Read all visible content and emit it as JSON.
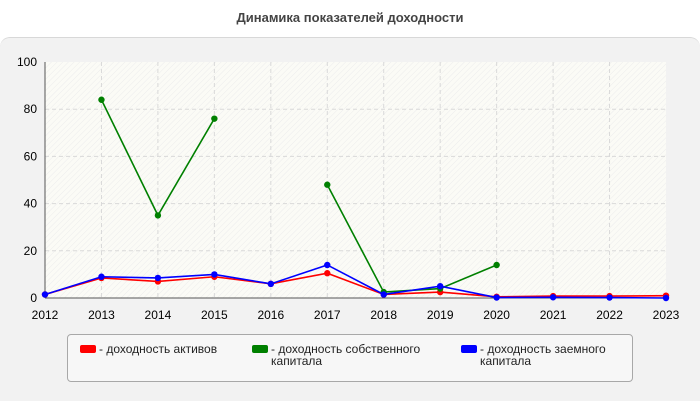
{
  "header": {
    "title": "Динамика показателей доходности"
  },
  "chart_data": {
    "type": "line",
    "title": "Динамика показателей доходности",
    "x": [
      2012,
      2013,
      2014,
      2015,
      2016,
      2017,
      2018,
      2019,
      2020,
      2021,
      2022,
      2023
    ],
    "xlim": [
      2012,
      2023
    ],
    "ylim": [
      0,
      100
    ],
    "yticks": [
      0,
      20,
      40,
      60,
      80,
      100
    ],
    "grid": true,
    "legend_position": "bottom",
    "series": [
      {
        "name": "- доходность активов",
        "color": "#ff0000",
        "values": [
          1.5,
          8.5,
          7.0,
          9.0,
          6.0,
          10.5,
          1.5,
          2.5,
          0.5,
          0.8,
          0.8,
          1.0
        ]
      },
      {
        "name": "- доходность собственного капитала",
        "color": "#008000",
        "values": [
          null,
          84,
          35,
          76,
          null,
          48,
          2.5,
          4.0,
          14,
          null,
          null,
          null
        ]
      },
      {
        "name": "- доходность заемного капитала",
        "color": "#0000ff",
        "values": [
          1.5,
          9.0,
          8.5,
          10.0,
          6.0,
          14.0,
          1.5,
          5.0,
          0.2,
          0.3,
          0.2,
          0.0
        ]
      }
    ]
  }
}
